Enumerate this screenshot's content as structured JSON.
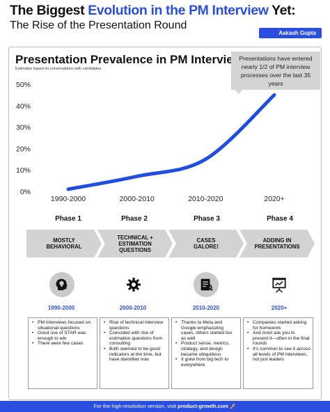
{
  "header": {
    "title_part1": "The Biggest ",
    "title_part2": "Evolution in the PM Interview",
    "title_part3": " Yet:",
    "subtitle": "The Rise of the Presentation Round",
    "author": "Aakash Gupta"
  },
  "chart_data": {
    "type": "line",
    "title": "Presentation Prevalence in PM Interviews",
    "subtitle": "Estimates based on conversations with candidates",
    "categories": [
      "1990-2000",
      "2000-2010",
      "2010-2020",
      "2020+"
    ],
    "values": [
      1,
      7,
      15,
      45
    ],
    "ylim": [
      0,
      50
    ],
    "yticks": [
      "0%",
      "10%",
      "20%",
      "30%",
      "40%",
      "50%"
    ],
    "ytick_values": [
      0,
      10,
      20,
      30,
      40,
      50
    ],
    "grid": false,
    "line_color": "#1f4fe0",
    "annotation": "Presentations have entered nearly 1/2 of PM interview processes over the last 35 years"
  },
  "phases": [
    {
      "label": "Phase 1",
      "chevron": [
        "MOSTLY",
        "BEHAVIORAL"
      ],
      "icon": "head-idea-icon",
      "years": "1990-2000",
      "notes": [
        "PM interviews focused on situational questions",
        "Good use of STAR was enough to win",
        "There were few cases"
      ]
    },
    {
      "label": "Phase 2",
      "chevron": [
        "TECHNICAL +",
        "ESTIMATION",
        "QUESTIONS"
      ],
      "icon": "gear-icon",
      "years": "2000-2010",
      "notes": [
        "Rise of technical interview questions",
        "Coincided with rise of estimation questions from consulting",
        "Both seemed to be good indicators at the time, but have dwindled now"
      ]
    },
    {
      "label": "Phase 3",
      "chevron": [
        "CASES",
        "GALORE!"
      ],
      "icon": "case-document-icon",
      "years": "2010-2020",
      "notes": [
        "Thanks to Meta and Google emphasizing cases, others started too as well",
        "Product sense, metrics, strategy, and design became ubiquitious",
        "It grew from big tech to everywhere"
      ]
    },
    {
      "label": "Phase 4",
      "chevron": [
        "ADDING IN",
        "PRESENTATIONS"
      ],
      "icon": "presentation-board-icon",
      "years": "2020+",
      "notes": [
        "Companies started asking for homework",
        "And most ask you to present it—often in the final rounds",
        "It's common to see it across all levels of PM interviews, not just leaders"
      ]
    }
  ],
  "footer": {
    "text": "For the high-resolution version, visit ",
    "link": "product-growth.com",
    "emoji": "🚀"
  },
  "colors": {
    "accent": "#2a4ee0",
    "chevron_gray": "#d3d3d3",
    "callout_gray": "#d4d4d4"
  }
}
